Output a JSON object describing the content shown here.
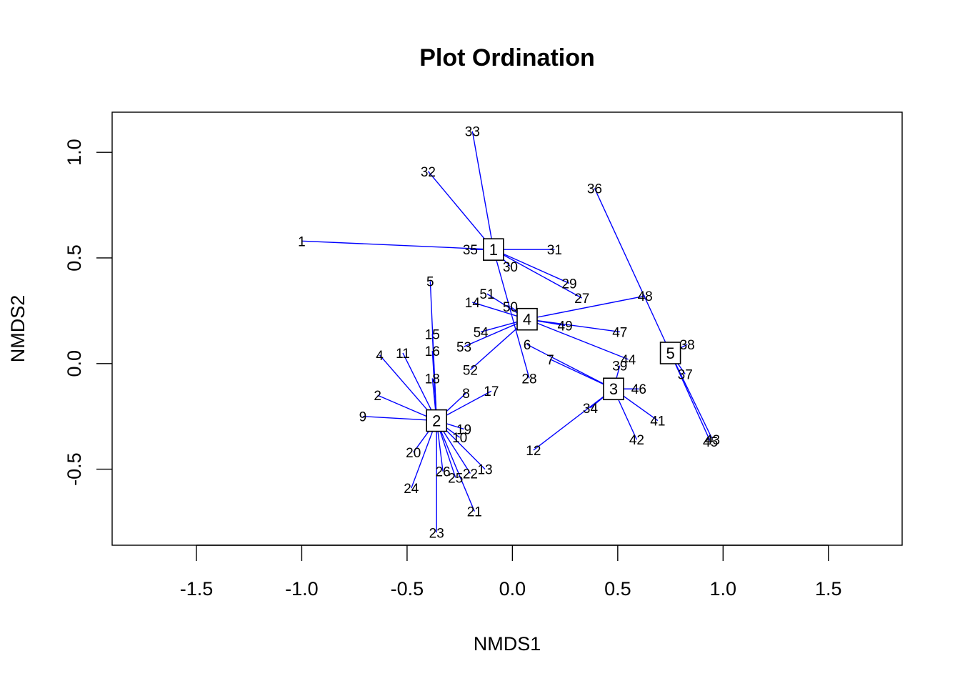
{
  "chart_data": {
    "type": "scatter",
    "title": "Plot Ordination",
    "xlabel": "NMDS1",
    "ylabel": "NMDS2",
    "xlim": [
      -1.9,
      1.85
    ],
    "ylim": [
      -0.86,
      1.19
    ],
    "xticks": [
      -1.5,
      -1.0,
      -0.5,
      0.0,
      0.5,
      1.0,
      1.5
    ],
    "yticks": [
      -0.5,
      0.0,
      0.5,
      1.0
    ],
    "xtick_labels": [
      "-1.5",
      "-1.0",
      "-0.5",
      "0.0",
      "0.5",
      "1.0",
      "1.5"
    ],
    "ytick_labels": [
      "-0.5",
      "0.0",
      "0.5",
      "1.0"
    ],
    "grid": false,
    "spider_color": "#0000ff",
    "groups": [
      {
        "label": "1",
        "x": -0.09,
        "y": 0.54
      },
      {
        "label": "2",
        "x": -0.36,
        "y": -0.27
      },
      {
        "label": "3",
        "x": 0.48,
        "y": -0.12
      },
      {
        "label": "4",
        "x": 0.07,
        "y": 0.21
      },
      {
        "label": "5",
        "x": 0.75,
        "y": 0.05
      }
    ],
    "points": [
      {
        "label": "1",
        "x": -1.0,
        "y": 0.58,
        "group": "1"
      },
      {
        "label": "2",
        "x": -0.64,
        "y": -0.15,
        "group": "2"
      },
      {
        "label": "4",
        "x": -0.63,
        "y": 0.04,
        "group": "2"
      },
      {
        "label": "5",
        "x": -0.39,
        "y": 0.39,
        "group": "2"
      },
      {
        "label": "6",
        "x": 0.07,
        "y": 0.09,
        "group": "3"
      },
      {
        "label": "7",
        "x": 0.18,
        "y": 0.02,
        "group": "3"
      },
      {
        "label": "8",
        "x": -0.22,
        "y": -0.14,
        "group": "2"
      },
      {
        "label": "9",
        "x": -0.71,
        "y": -0.25,
        "group": "2"
      },
      {
        "label": "10",
        "x": -0.25,
        "y": -0.35,
        "group": "2"
      },
      {
        "label": "11",
        "x": -0.52,
        "y": 0.05,
        "group": "2"
      },
      {
        "label": "12",
        "x": 0.1,
        "y": -0.41,
        "group": "3"
      },
      {
        "label": "13",
        "x": -0.13,
        "y": -0.5,
        "group": "2"
      },
      {
        "label": "14",
        "x": -0.19,
        "y": 0.29,
        "group": "4"
      },
      {
        "label": "15",
        "x": -0.38,
        "y": 0.14,
        "group": "2"
      },
      {
        "label": "16",
        "x": -0.38,
        "y": 0.06,
        "group": "2"
      },
      {
        "label": "17",
        "x": -0.1,
        "y": -0.13,
        "group": "2"
      },
      {
        "label": "18",
        "x": -0.38,
        "y": -0.07,
        "group": "2"
      },
      {
        "label": "19",
        "x": -0.23,
        "y": -0.31,
        "group": "2"
      },
      {
        "label": "20",
        "x": -0.47,
        "y": -0.42,
        "group": "2"
      },
      {
        "label": "21",
        "x": -0.18,
        "y": -0.7,
        "group": "2"
      },
      {
        "label": "22",
        "x": -0.2,
        "y": -0.52,
        "group": "2"
      },
      {
        "label": "23",
        "x": -0.36,
        "y": -0.8,
        "group": "2"
      },
      {
        "label": "24",
        "x": -0.48,
        "y": -0.59,
        "group": "2"
      },
      {
        "label": "25",
        "x": -0.27,
        "y": -0.54,
        "group": "2"
      },
      {
        "label": "26",
        "x": -0.33,
        "y": -0.51,
        "group": "2"
      },
      {
        "label": "27",
        "x": 0.33,
        "y": 0.31,
        "group": "1"
      },
      {
        "label": "28",
        "x": 0.08,
        "y": -0.07,
        "group": "1"
      },
      {
        "label": "29",
        "x": 0.27,
        "y": 0.38,
        "group": "1"
      },
      {
        "label": "30",
        "x": -0.01,
        "y": 0.46,
        "group": "1"
      },
      {
        "label": "31",
        "x": 0.2,
        "y": 0.54,
        "group": "1"
      },
      {
        "label": "32",
        "x": -0.4,
        "y": 0.91,
        "group": "1"
      },
      {
        "label": "33",
        "x": -0.19,
        "y": 1.1,
        "group": "1"
      },
      {
        "label": "34",
        "x": 0.37,
        "y": -0.21,
        "group": "3"
      },
      {
        "label": "35",
        "x": -0.2,
        "y": 0.54,
        "group": "1"
      },
      {
        "label": "36",
        "x": 0.39,
        "y": 0.83,
        "group": "5"
      },
      {
        "label": "37",
        "x": 0.82,
        "y": -0.05,
        "group": "5"
      },
      {
        "label": "38",
        "x": 0.83,
        "y": 0.09,
        "group": "5"
      },
      {
        "label": "39",
        "x": 0.51,
        "y": -0.01,
        "group": "3"
      },
      {
        "label": "41",
        "x": 0.69,
        "y": -0.27,
        "group": "3"
      },
      {
        "label": "42",
        "x": 0.59,
        "y": -0.36,
        "group": "3"
      },
      {
        "label": "43",
        "x": 0.95,
        "y": -0.36,
        "group": "5"
      },
      {
        "label": "44",
        "x": 0.55,
        "y": 0.02,
        "group": "4"
      },
      {
        "label": "45",
        "x": 0.94,
        "y": -0.37,
        "group": "5"
      },
      {
        "label": "46",
        "x": 0.6,
        "y": -0.12,
        "group": "3"
      },
      {
        "label": "47",
        "x": 0.51,
        "y": 0.15,
        "group": "4"
      },
      {
        "label": "48",
        "x": 0.63,
        "y": 0.32,
        "group": "4"
      },
      {
        "label": "49",
        "x": 0.25,
        "y": 0.18,
        "group": "4"
      },
      {
        "label": "50",
        "x": -0.01,
        "y": 0.27,
        "group": "4"
      },
      {
        "label": "51",
        "x": -0.12,
        "y": 0.33,
        "group": "4"
      },
      {
        "label": "52",
        "x": -0.2,
        "y": -0.03,
        "group": "4"
      },
      {
        "label": "53",
        "x": -0.23,
        "y": 0.08,
        "group": "4"
      },
      {
        "label": "54",
        "x": -0.15,
        "y": 0.15,
        "group": "4"
      }
    ]
  }
}
